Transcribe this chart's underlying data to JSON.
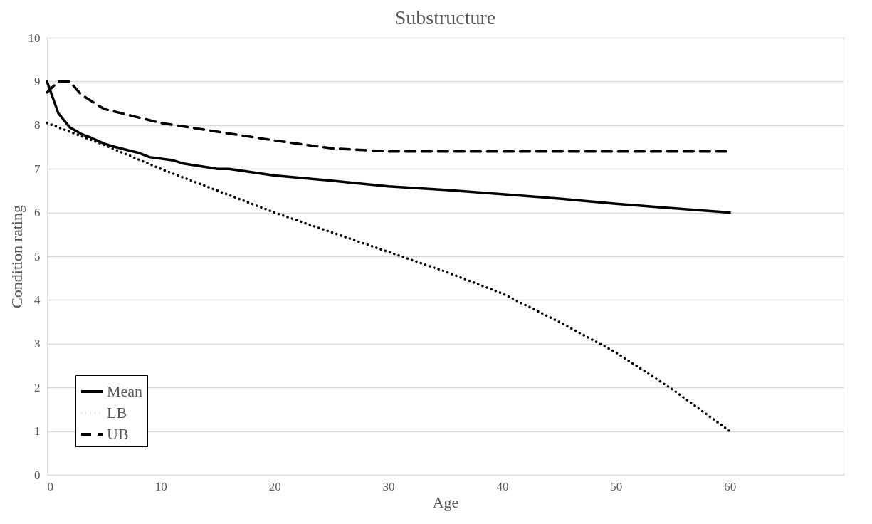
{
  "chart_data": {
    "type": "line",
    "title": "Substructure",
    "xlabel": "Age",
    "ylabel": "Condition  rating",
    "xlim": [
      0,
      70
    ],
    "xticks": [
      0,
      10,
      20,
      30,
      40,
      50,
      60
    ],
    "ylim": [
      0,
      10
    ],
    "yticks": [
      0,
      1,
      2,
      3,
      4,
      5,
      6,
      7,
      8,
      9,
      10
    ],
    "grid": "y",
    "legend": "bottom left",
    "marker": "none",
    "series": [
      {
        "name": "Mean",
        "color": "#000000",
        "line_style": "solid",
        "x": [
          0,
          1,
          2,
          3,
          4,
          5,
          6,
          8,
          9,
          11,
          12,
          15,
          16,
          20,
          25,
          30,
          35,
          40,
          45,
          50,
          55,
          60
        ],
        "values": [
          9.0,
          8.27,
          7.95,
          7.8,
          7.7,
          7.58,
          7.5,
          7.37,
          7.27,
          7.2,
          7.12,
          7.0,
          7.0,
          6.85,
          6.73,
          6.6,
          6.52,
          6.42,
          6.32,
          6.2,
          6.1,
          6.0
        ]
      },
      {
        "name": "LB",
        "color": "#000000",
        "line_style": "dotted",
        "x": [
          0,
          5,
          10,
          15,
          20,
          25,
          30,
          35,
          40,
          45,
          50,
          55,
          60
        ],
        "values": [
          8.05,
          7.55,
          7.0,
          6.5,
          6.0,
          5.55,
          5.1,
          4.65,
          4.15,
          3.5,
          2.8,
          1.95,
          1.0
        ]
      },
      {
        "name": "UB",
        "color": "#000000",
        "line_style": "dashed",
        "x": [
          0,
          1,
          2,
          3,
          5,
          10,
          15,
          20,
          25,
          30,
          40,
          50,
          60
        ],
        "values": [
          8.75,
          9.0,
          9.0,
          8.7,
          8.37,
          8.05,
          7.85,
          7.65,
          7.47,
          7.4,
          7.4,
          7.4,
          7.4
        ]
      }
    ]
  }
}
